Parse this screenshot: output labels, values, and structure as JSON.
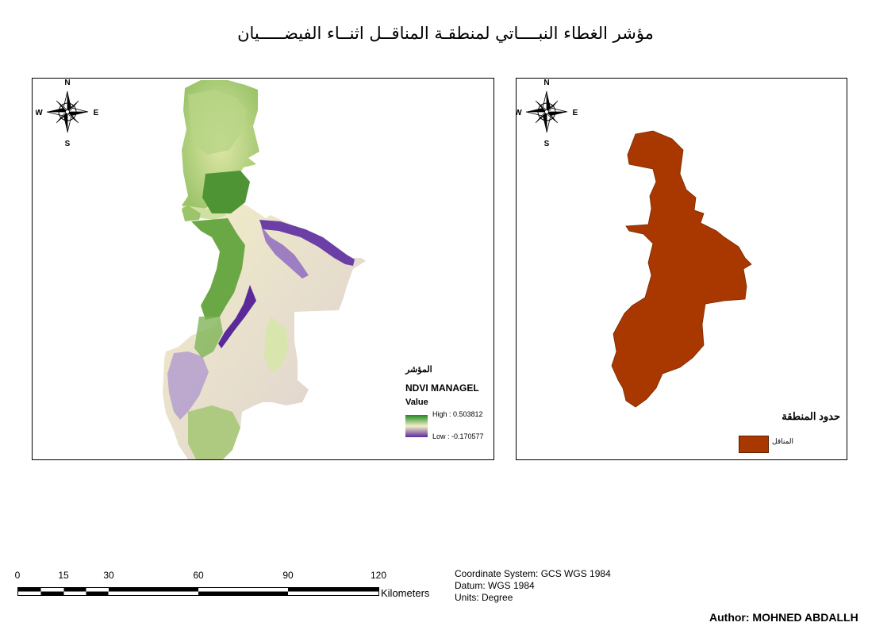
{
  "title": "مؤشر الغطاء النبــــاتي لمنطقـة المناقــل اثنــاء الفيضـــــيان",
  "compass": {
    "north": "N",
    "south": "S",
    "east": "E",
    "west": "W"
  },
  "ndvi_legend": {
    "title": "المؤشر",
    "layer_name": "NDVI MANAGEL",
    "value_label": "Value",
    "high": "High : 0.503812",
    "low": "Low : -0.170577",
    "colors": {
      "high": "#1e8a1e",
      "mid": "#f3efc9",
      "low": "#5b2a9a"
    }
  },
  "boundary_legend": {
    "title": "حدود المنطقة",
    "item_label": "المناقل",
    "color": "#a83800"
  },
  "scale_bar": {
    "ticks": [
      "0",
      "15",
      "30",
      "60",
      "90",
      "120"
    ],
    "units": "Kilometers"
  },
  "coordinate_info": {
    "system": "Coordinate System: GCS WGS 1984",
    "datum": "Datum: WGS 1984",
    "units": "Units: Degree"
  },
  "author": "Author: MOHNED ABDALLH"
}
